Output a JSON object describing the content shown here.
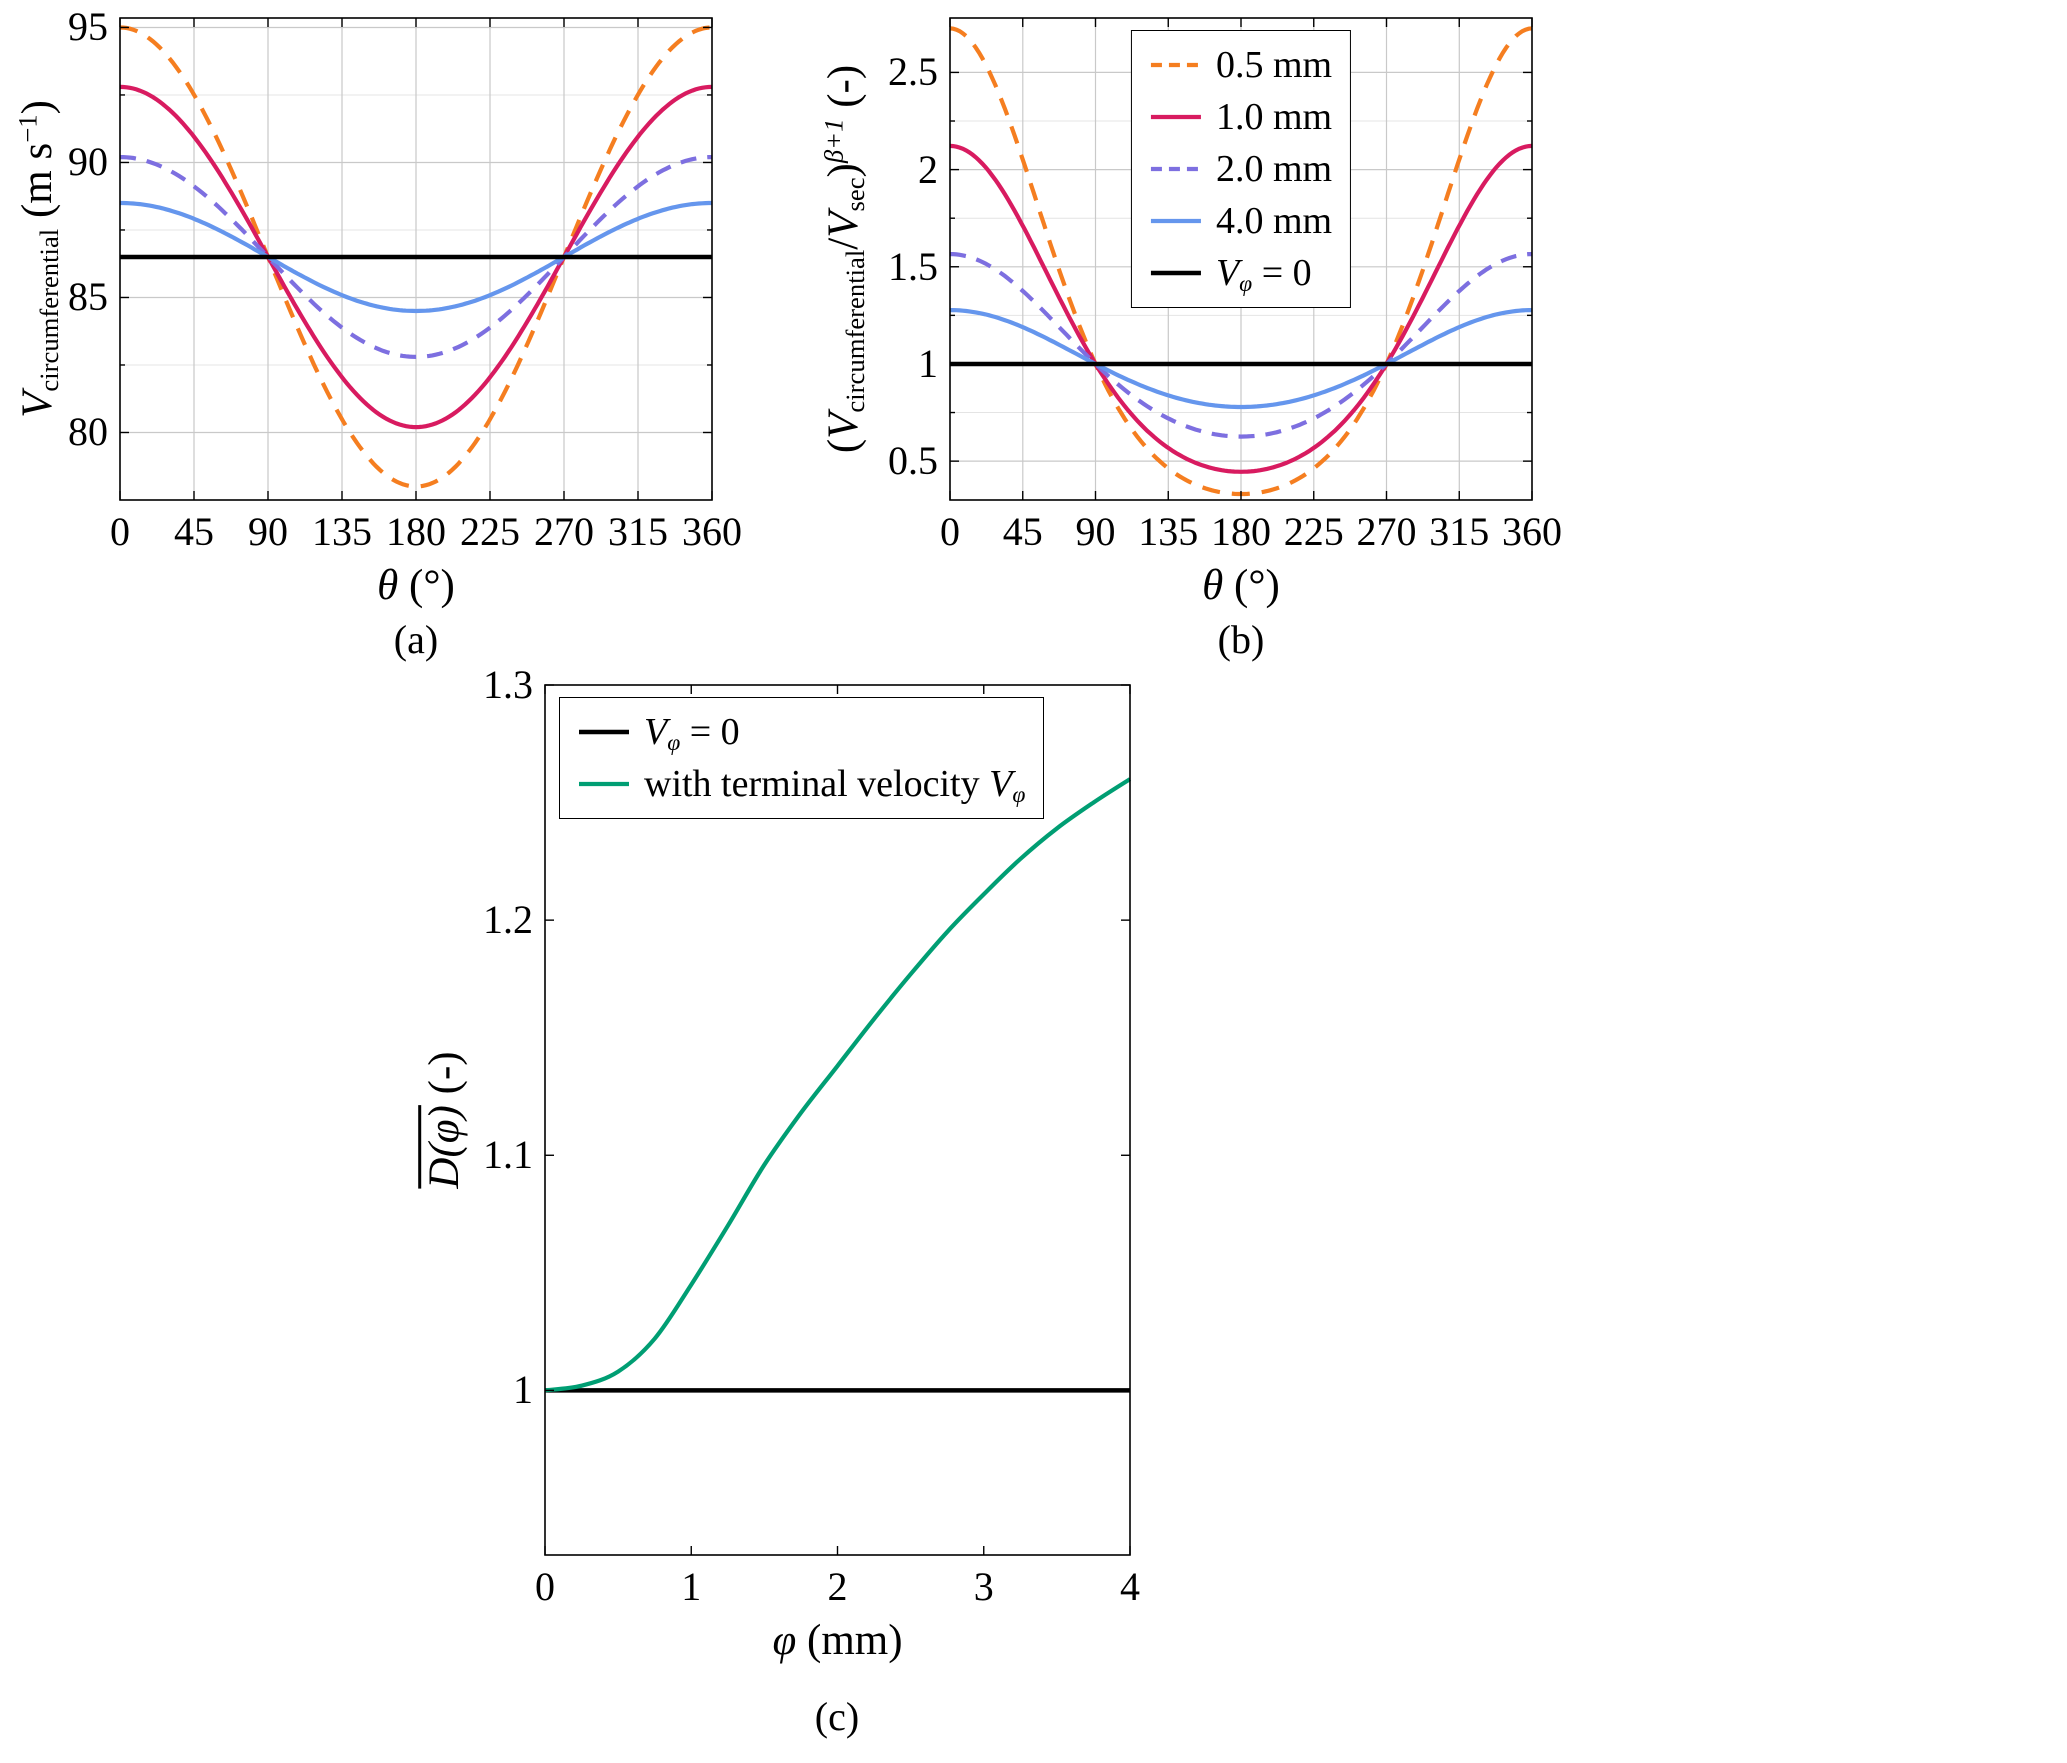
{
  "figure": {
    "background": "#ffffff"
  },
  "chart_data": [
    {
      "id": "a",
      "type": "line",
      "caption": "(a)",
      "xlabel": [
        [
          "θ",
          "i"
        ],
        [
          " (°)",
          ""
        ]
      ],
      "ylabel": [
        [
          "V",
          "i"
        ],
        [
          "circumferential",
          "sub"
        ],
        [
          " (m s",
          ""
        ],
        [
          "−1",
          "sup"
        ],
        [
          ")",
          ""
        ]
      ],
      "xlim": [
        0,
        360
      ],
      "ylim": [
        77.5,
        95.35
      ],
      "xticks": {
        "values": [
          0,
          45,
          90,
          135,
          180,
          225,
          270,
          315,
          360
        ],
        "labels": [
          "0",
          "45",
          "90",
          "135",
          "180",
          "225",
          "270",
          "315",
          "360"
        ]
      },
      "yticks": {
        "values": [
          80,
          85,
          90,
          95
        ],
        "labels": [
          "80",
          "85",
          "90",
          "95"
        ]
      },
      "yminor": [
        82.5,
        87.5,
        92.5
      ],
      "xminor": [],
      "grid": true,
      "legend": {
        "show": false
      },
      "series": [
        {
          "name": "0.5 mm",
          "label": [
            [
              "0.5 mm",
              ""
            ]
          ],
          "color": "#f57e20",
          "dash": [
            18,
            12
          ],
          "lw": 4.2,
          "model": {
            "kind": "cosine",
            "mean": 86.5,
            "amplitude": 8.5
          },
          "x": [
            0,
            30,
            60,
            90,
            120,
            150,
            180,
            210,
            240,
            270,
            300,
            330,
            360
          ],
          "y": [
            95.0,
            93.86,
            90.75,
            86.5,
            82.25,
            79.14,
            78.0,
            79.14,
            82.25,
            86.5,
            90.75,
            93.86,
            95.0
          ]
        },
        {
          "name": "1.0 mm",
          "label": [
            [
              "1.0 mm",
              ""
            ]
          ],
          "color": "#d81b60",
          "dash": null,
          "lw": 4.2,
          "model": {
            "kind": "cosine",
            "mean": 86.5,
            "amplitude": 6.3
          },
          "x": [
            0,
            30,
            60,
            90,
            120,
            150,
            180,
            210,
            240,
            270,
            300,
            330,
            360
          ],
          "y": [
            92.8,
            91.96,
            89.65,
            86.5,
            83.35,
            81.04,
            80.2,
            81.04,
            83.35,
            86.5,
            89.65,
            91.96,
            92.8
          ]
        },
        {
          "name": "2.0 mm",
          "label": [
            [
              "2.0 mm",
              ""
            ]
          ],
          "color": "#7d6fe0",
          "dash": [
            16,
            11
          ],
          "lw": 4.2,
          "model": {
            "kind": "cosine",
            "mean": 86.5,
            "amplitude": 3.7
          },
          "x": [
            0,
            30,
            60,
            90,
            120,
            150,
            180,
            210,
            240,
            270,
            300,
            330,
            360
          ],
          "y": [
            90.2,
            89.7,
            88.35,
            86.5,
            84.65,
            83.3,
            82.8,
            83.3,
            84.65,
            86.5,
            88.35,
            89.7,
            90.2
          ]
        },
        {
          "name": "4.0 mm",
          "label": [
            [
              "4.0 mm",
              ""
            ]
          ],
          "color": "#6596ed",
          "dash": null,
          "lw": 4.2,
          "model": {
            "kind": "cosine",
            "mean": 86.5,
            "amplitude": 2.0
          },
          "x": [
            0,
            30,
            60,
            90,
            120,
            150,
            180,
            210,
            240,
            270,
            300,
            330,
            360
          ],
          "y": [
            88.5,
            88.23,
            87.5,
            86.5,
            85.5,
            84.77,
            84.5,
            84.77,
            85.5,
            86.5,
            87.5,
            88.23,
            88.5
          ]
        },
        {
          "name": "Vφ = 0",
          "label": [
            [
              "V",
              "i"
            ],
            [
              "φ",
              "isub"
            ],
            [
              " = 0",
              ""
            ]
          ],
          "color": "#000000",
          "dash": null,
          "lw": 4.5,
          "model": {
            "kind": "const",
            "value": 86.5
          },
          "x": [
            0,
            360
          ],
          "y": [
            86.5,
            86.5
          ]
        }
      ]
    },
    {
      "id": "b",
      "type": "line",
      "caption": "(b)",
      "xlabel": [
        [
          "θ",
          "i"
        ],
        [
          " (°)",
          ""
        ]
      ],
      "ylabel": [
        [
          "(",
          ""
        ],
        [
          "V",
          "i"
        ],
        [
          "circumferential",
          "sub"
        ],
        [
          "/",
          ""
        ],
        [
          "V",
          "i"
        ],
        [
          "sec",
          "sub"
        ],
        [
          ")",
          ""
        ],
        [
          "β+1",
          "isup"
        ],
        [
          " (-)",
          ""
        ]
      ],
      "xlim": [
        0,
        360
      ],
      "ylim": [
        0.3,
        2.78
      ],
      "xticks": {
        "values": [
          0,
          45,
          90,
          135,
          180,
          225,
          270,
          315,
          360
        ],
        "labels": [
          "0",
          "45",
          "90",
          "135",
          "180",
          "225",
          "270",
          "315",
          "360"
        ]
      },
      "yticks": {
        "values": [
          0.5,
          1,
          1.5,
          2,
          2.5
        ],
        "labels": [
          "0.5",
          "1",
          "1.5",
          "2",
          "2.5"
        ]
      },
      "yminor": [
        0.75,
        1.25,
        1.75,
        2.25
      ],
      "xminor": [],
      "grid": true,
      "legend": {
        "show": true,
        "position": "top-center"
      },
      "series": [
        {
          "name": "0.5 mm",
          "label": [
            [
              "0.5 mm",
              ""
            ]
          ],
          "color": "#f57e20",
          "dash": [
            18,
            12
          ],
          "lw": 4.2,
          "model": {
            "kind": "cospow",
            "mean": 86.5,
            "amplitude": 8.5,
            "exponent": 10.7
          },
          "x": [
            0,
            30,
            60,
            90,
            120,
            150,
            180,
            210,
            240,
            270,
            300,
            330,
            360
          ],
          "y": [
            2.73,
            2.4,
            1.67,
            1.0,
            0.58,
            0.39,
            0.33,
            0.39,
            0.58,
            1.0,
            1.67,
            2.4,
            2.73
          ]
        },
        {
          "name": "1.0 mm",
          "label": [
            [
              "1.0 mm",
              ""
            ]
          ],
          "color": "#d81b60",
          "dash": null,
          "lw": 4.2,
          "model": {
            "kind": "cospow",
            "mean": 86.5,
            "amplitude": 6.3,
            "exponent": 10.7
          },
          "x": [
            0,
            30,
            60,
            90,
            120,
            150,
            180,
            210,
            240,
            270,
            300,
            330,
            360
          ],
          "y": [
            2.12,
            1.92,
            1.47,
            1.0,
            0.67,
            0.5,
            0.45,
            0.5,
            0.67,
            1.0,
            1.47,
            1.92,
            2.12
          ]
        },
        {
          "name": "2.0 mm",
          "label": [
            [
              "2.0 mm",
              ""
            ]
          ],
          "color": "#7d6fe0",
          "dash": [
            16,
            11
          ],
          "lw": 4.2,
          "model": {
            "kind": "cospow",
            "mean": 86.5,
            "amplitude": 3.7,
            "exponent": 10.7
          },
          "x": [
            0,
            30,
            60,
            90,
            120,
            150,
            180,
            210,
            240,
            270,
            300,
            330,
            360
          ],
          "y": [
            1.57,
            1.48,
            1.25,
            1.0,
            0.79,
            0.67,
            0.63,
            0.67,
            0.79,
            1.0,
            1.25,
            1.48,
            1.57
          ]
        },
        {
          "name": "4.0 mm",
          "label": [
            [
              "4.0 mm",
              ""
            ]
          ],
          "color": "#6596ed",
          "dash": null,
          "lw": 4.2,
          "model": {
            "kind": "cospow",
            "mean": 86.5,
            "amplitude": 2.0,
            "exponent": 10.7
          },
          "x": [
            0,
            30,
            60,
            90,
            120,
            150,
            180,
            210,
            240,
            270,
            300,
            330,
            360
          ],
          "y": [
            1.28,
            1.24,
            1.13,
            1.0,
            0.88,
            0.81,
            0.78,
            0.81,
            0.88,
            1.0,
            1.13,
            1.24,
            1.28
          ]
        },
        {
          "name": "Vφ = 0",
          "label": [
            [
              "V",
              "i"
            ],
            [
              "φ",
              "isub"
            ],
            [
              " = 0",
              ""
            ]
          ],
          "color": "#000000",
          "dash": null,
          "lw": 4.5,
          "model": {
            "kind": "const",
            "value": 1.0
          },
          "x": [
            0,
            360
          ],
          "y": [
            1.0,
            1.0
          ]
        }
      ]
    },
    {
      "id": "c",
      "type": "line",
      "caption": "(c)",
      "xlabel": [
        [
          "φ",
          "i"
        ],
        [
          " (mm)",
          ""
        ]
      ],
      "ylabel": [
        [
          "D(φ)",
          "iover"
        ],
        [
          " (-)",
          ""
        ]
      ],
      "xlim": [
        0,
        4
      ],
      "ylim": [
        0.93,
        1.3
      ],
      "xticks": {
        "values": [
          0,
          1,
          2,
          3,
          4
        ],
        "labels": [
          "0",
          "1",
          "2",
          "3",
          "4"
        ]
      },
      "yticks": {
        "values": [
          1,
          1.1,
          1.2,
          1.3
        ],
        "labels": [
          "1",
          "1.1",
          "1.2",
          "1.3"
        ]
      },
      "yminor": [],
      "xminor": [],
      "grid": false,
      "legend": {
        "show": true,
        "position": "top-left"
      },
      "series": [
        {
          "name": "Vφ = 0",
          "label": [
            [
              "V",
              "i"
            ],
            [
              "φ",
              "isub"
            ],
            [
              " = 0",
              ""
            ]
          ],
          "color": "#000000",
          "dash": null,
          "lw": 4.5,
          "model": {
            "kind": "const",
            "value": 1.0
          },
          "x": [
            0,
            4
          ],
          "y": [
            1.0,
            1.0
          ]
        },
        {
          "name": "with terminal velocity Vφ",
          "label": [
            [
              "with terminal velocity ",
              ""
            ],
            [
              "V",
              "i"
            ],
            [
              "φ",
              "isub"
            ]
          ],
          "color": "#009e73",
          "dash": null,
          "lw": 4.2,
          "x": [
            0,
            0.25,
            0.5,
            0.75,
            1,
            1.25,
            1.5,
            1.75,
            2,
            2.25,
            2.5,
            2.75,
            3,
            3.25,
            3.5,
            3.75,
            4
          ],
          "y": [
            1.0,
            1.002,
            1.008,
            1.022,
            1.045,
            1.07,
            1.096,
            1.118,
            1.138,
            1.158,
            1.177,
            1.195,
            1.211,
            1.226,
            1.239,
            1.25,
            1.26
          ]
        }
      ]
    }
  ]
}
